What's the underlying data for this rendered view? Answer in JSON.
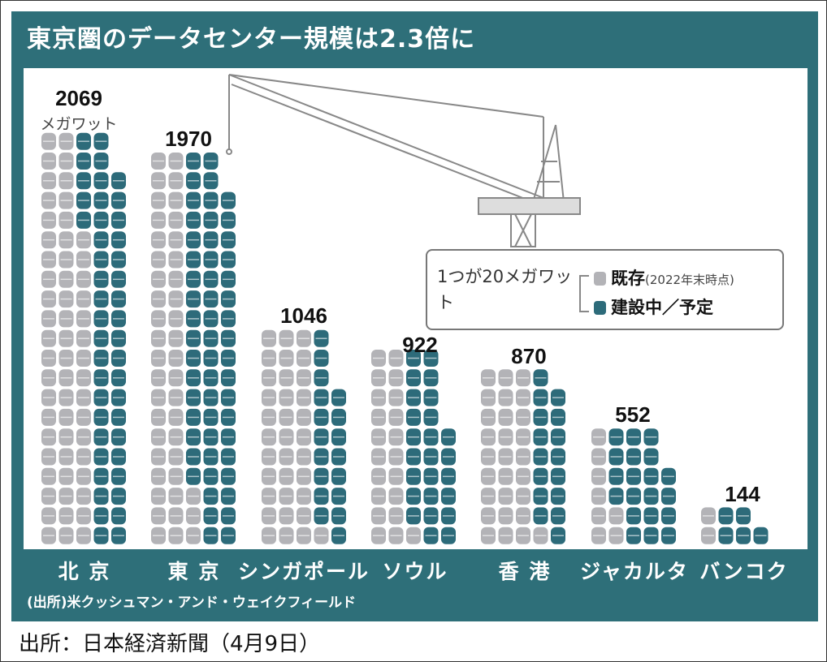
{
  "title": "東京圏のデータセンター規模は2.3倍に",
  "source_note": "(出所)米クッシュマン・アンド・ウェイクフィールド",
  "footer": "出所：日本経済新聞（4月9日）",
  "unit_label": "メガワット",
  "legend": {
    "unit_text": "1つが20メガワット",
    "existing": "既存",
    "existing_note": "(2022年末時点)",
    "planned": "建設中／予定"
  },
  "colors": {
    "background": "#2e6f79",
    "existing": "#b3b3b7",
    "planned": "#2d6b7a"
  },
  "icons": {
    "crane": "construction-crane-illustration",
    "unit": "server-drum-icon"
  },
  "chart_data": {
    "type": "bar",
    "subtype": "stacked-pictogram",
    "unit": "メガワット",
    "unit_per_icon": 20,
    "categories": [
      "北 京",
      "東 京",
      "シンガポール",
      "ソウル",
      "香 港",
      "ジャカルタ",
      "バンコク"
    ],
    "totals": [
      2069,
      1970,
      1046,
      922,
      870,
      552,
      144
    ],
    "series": [
      {
        "name": "既存",
        "values": [
          1160,
          865,
          680,
          425,
          560,
          150,
          40
        ]
      },
      {
        "name": "建設中／予定",
        "values": [
          909,
          1105,
          366,
          497,
          310,
          402,
          104
        ]
      }
    ]
  }
}
